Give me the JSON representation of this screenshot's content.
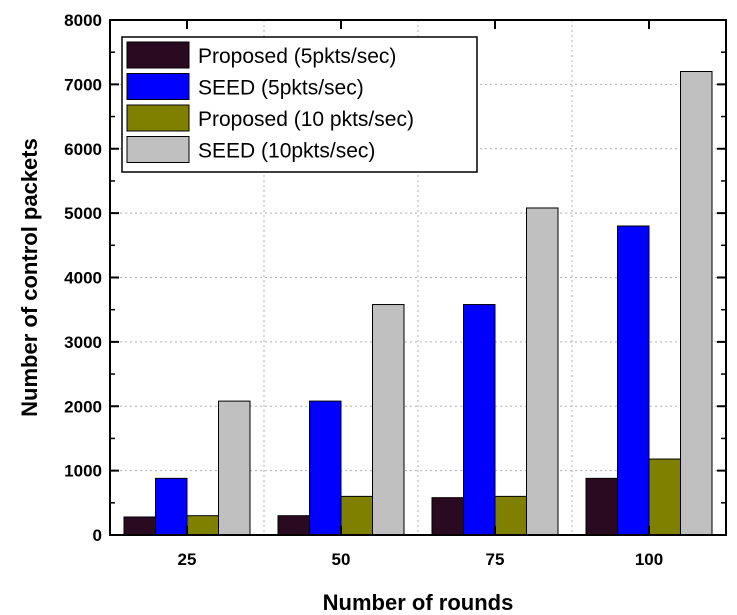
{
  "chart_data": {
    "type": "bar",
    "title": "",
    "xlabel": "Number of rounds",
    "ylabel": "Number of control packets",
    "categories": [
      "25",
      "50",
      "75",
      "100"
    ],
    "ylim": [
      0,
      8000
    ],
    "yticks": [
      "0",
      "1000",
      "2000",
      "3000",
      "4000",
      "5000",
      "6000",
      "7000",
      "8000"
    ],
    "grid": true,
    "legend_position": "top-left",
    "series": [
      {
        "name": "Proposed (5pkts/sec)",
        "color": "#2a0a20",
        "values": [
          280,
          300,
          580,
          880
        ]
      },
      {
        "name": "SEED (5pkts/sec)",
        "color": "#0000ff",
        "values": [
          880,
          2080,
          3580,
          4800
        ]
      },
      {
        "name": "Proposed (10 pkts/sec)",
        "color": "#808000",
        "values": [
          300,
          600,
          600,
          1180
        ]
      },
      {
        "name": "SEED (10pkts/sec)",
        "color": "#c0c0c0",
        "values": [
          2080,
          3580,
          5080,
          7200
        ]
      }
    ]
  }
}
